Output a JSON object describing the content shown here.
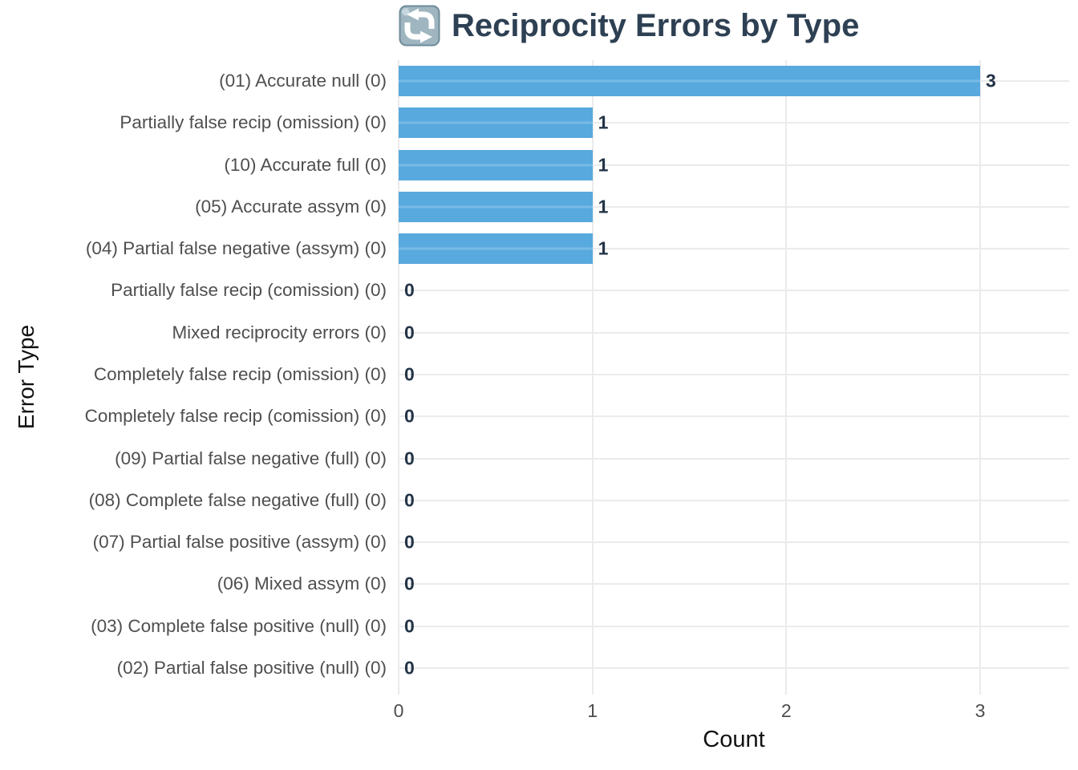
{
  "title": {
    "text": "Reciprocity Errors by Type",
    "icon": "cycle-arrows-icon",
    "color": "#2E4053"
  },
  "chart_data": {
    "type": "bar",
    "orientation": "horizontal",
    "title": "Reciprocity Errors by Type",
    "categories": [
      "(01) Accurate null (0)",
      "Partially false recip (omission) (0)",
      "(10) Accurate full (0)",
      "(05) Accurate assym (0)",
      "(04) Partial false negative (assym) (0)",
      "Partially false recip (comission) (0)",
      "Mixed reciprocity errors (0)",
      "Completely false recip (omission) (0)",
      "Completely false recip (comission) (0)",
      "(09) Partial false negative (full) (0)",
      "(08) Complete false negative (full) (0)",
      "(07) Partial false positive (assym) (0)",
      "(06) Mixed assym (0)",
      "(03) Complete false positive (null) (0)",
      "(02) Partial false positive (null) (0)"
    ],
    "values": [
      3,
      1,
      1,
      1,
      1,
      0,
      0,
      0,
      0,
      0,
      0,
      0,
      0,
      0,
      0
    ],
    "value_labels": [
      "3",
      "1",
      "1",
      "1",
      "1",
      "0",
      "0",
      "0",
      "0",
      "0",
      "0",
      "0",
      "0",
      "0",
      "0"
    ],
    "xlabel": "Count",
    "ylabel": "Error Type",
    "xlim": [
      0,
      3
    ],
    "x_ticks": [
      "0",
      "1",
      "2",
      "3"
    ],
    "grid": true,
    "legend": false,
    "bar_color": "#58A9DD",
    "bar_stripe_color": "#79BAE6",
    "grid_color": "#EBEBEB",
    "value_label_color": "#243447",
    "category_label_color": "#4F4F4F",
    "tick_label_color": "#4D4D4D"
  }
}
